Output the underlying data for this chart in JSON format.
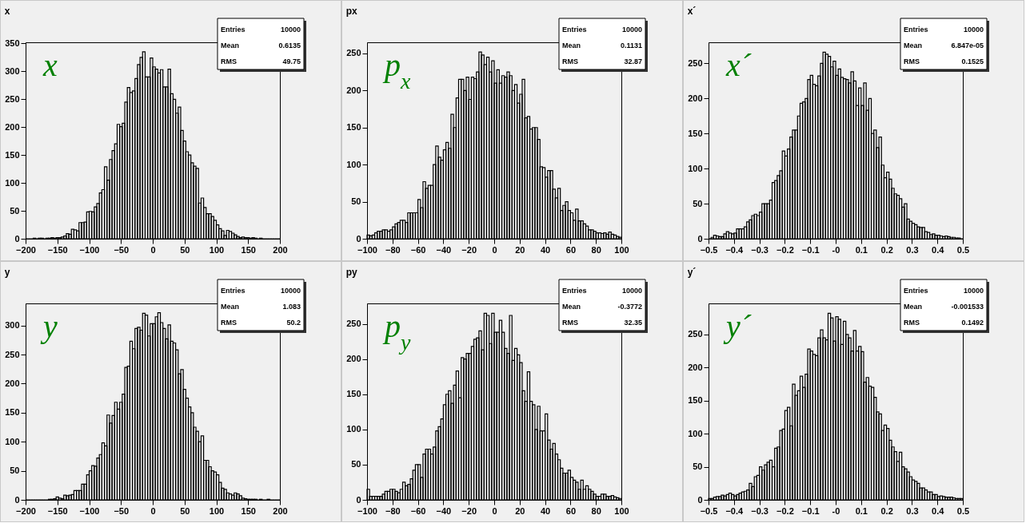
{
  "chart_data": [
    {
      "type": "histogram",
      "title": "x",
      "color": "#000000",
      "annotations": [
        "x",
        "Entries",
        "10000",
        "Mean",
        "0.6135",
        "RMS",
        "49.75"
      ],
      "xlim": [
        -200,
        200
      ],
      "xticks": [
        -200,
        -150,
        -100,
        -50,
        0,
        50,
        100,
        150,
        200
      ],
      "ylim": [
        0,
        352
      ],
      "yticks": [
        0,
        50,
        100,
        150,
        200,
        250,
        300,
        350
      ],
      "bins": [
        -200,
        -196,
        -192,
        -188,
        -184,
        -180,
        -176,
        -172,
        -168,
        -164,
        -160,
        -156,
        -152,
        -148,
        -144,
        -140,
        -136,
        -132,
        -128,
        -124,
        -120,
        -116,
        -112,
        -108,
        -104,
        -100,
        -96,
        -92,
        -88,
        -84,
        -80,
        -76,
        -72,
        -68,
        -64,
        -60,
        -56,
        -52,
        -48,
        -44,
        -40,
        -36,
        -32,
        -28,
        -24,
        -20,
        -16,
        -12,
        -8,
        -4,
        0,
        4,
        8,
        12,
        16,
        20,
        24,
        28,
        32,
        36,
        40,
        44,
        48,
        52,
        56,
        60,
        64,
        68,
        72,
        76,
        80,
        84,
        88,
        92,
        96,
        100,
        104,
        108,
        112,
        116,
        120,
        124,
        128,
        132,
        136,
        140,
        144,
        148,
        152,
        156,
        160,
        164,
        168,
        172,
        176,
        180,
        184,
        188,
        192,
        196,
        200
      ],
      "values": [
        0,
        0,
        0,
        1,
        0,
        1,
        1,
        0,
        1,
        1,
        2,
        1,
        2,
        2,
        3,
        5,
        9,
        8,
        17,
        16,
        14,
        29,
        29,
        30,
        48,
        49,
        48,
        57,
        63,
        82,
        88,
        129,
        105,
        142,
        158,
        170,
        205,
        201,
        207,
        245,
        271,
        262,
        265,
        287,
        312,
        325,
        335,
        290,
        290,
        324,
        308,
        304,
        297,
        303,
        272,
        272,
        304,
        260,
        250,
        225,
        236,
        194,
        175,
        156,
        150,
        136,
        130,
        126,
        64,
        73,
        56,
        45,
        45,
        40,
        33,
        25,
        18,
        14,
        6,
        15,
        13,
        10,
        7,
        4,
        2,
        3,
        2,
        2,
        1,
        2,
        1,
        0,
        1,
        0,
        0,
        0,
        0,
        0,
        0,
        0
      ]
    },
    {
      "type": "histogram",
      "title": "px",
      "color": "#000000",
      "annotations": [
        "p$_{x}$",
        "Entries",
        "10000",
        "Mean",
        "0.1131",
        "RMS",
        "32.87"
      ],
      "xlim": [
        -100,
        100
      ],
      "xticks": [
        -100,
        -80,
        -60,
        -40,
        -20,
        0,
        20,
        40,
        60,
        80,
        100
      ],
      "ylim": [
        0,
        265
      ],
      "yticks": [
        0,
        50,
        100,
        150,
        200,
        250
      ],
      "bins": [
        -100,
        -98,
        -96,
        -94,
        -92,
        -90,
        -88,
        -86,
        -84,
        -82,
        -80,
        -78,
        -76,
        -74,
        -72,
        -70,
        -68,
        -66,
        -64,
        -62,
        -60,
        -58,
        -56,
        -54,
        -52,
        -50,
        -48,
        -46,
        -44,
        -42,
        -40,
        -38,
        -36,
        -34,
        -32,
        -30,
        -28,
        -26,
        -24,
        -22,
        -20,
        -18,
        -16,
        -14,
        -12,
        -10,
        -8,
        -6,
        -4,
        -2,
        0,
        2,
        4,
        6,
        8,
        10,
        12,
        14,
        16,
        18,
        20,
        22,
        24,
        26,
        28,
        30,
        32,
        34,
        36,
        38,
        40,
        42,
        44,
        46,
        48,
        50,
        52,
        54,
        56,
        58,
        60,
        62,
        64,
        66,
        68,
        70,
        72,
        74,
        76,
        78,
        80,
        82,
        84,
        86,
        88,
        90,
        92,
        94,
        96,
        98,
        100
      ],
      "values": [
        5,
        4,
        5,
        8,
        10,
        10,
        12,
        12,
        10,
        12,
        16,
        20,
        22,
        25,
        25,
        22,
        35,
        35,
        35,
        35,
        53,
        42,
        77,
        68,
        72,
        72,
        100,
        125,
        110,
        106,
        120,
        130,
        122,
        168,
        150,
        190,
        215,
        215,
        200,
        218,
        188,
        218,
        216,
        225,
        252,
        248,
        235,
        245,
        225,
        240,
        210,
        228,
        210,
        220,
        218,
        225,
        220,
        200,
        208,
        183,
        195,
        215,
        163,
        165,
        148,
        150,
        150,
        134,
        97,
        96,
        83,
        92,
        92,
        67,
        55,
        68,
        38,
        45,
        50,
        38,
        35,
        25,
        40,
        24,
        24,
        20,
        17,
        12,
        12,
        10,
        8,
        8,
        7,
        8,
        6,
        9,
        6,
        5,
        3,
        2
      ]
    },
    {
      "type": "histogram",
      "title": "x´",
      "color": "#000000",
      "annotations": [
        "x´",
        "Entries",
        "10000",
        "Mean",
        "6.847e-05",
        "RMS",
        "0.1525"
      ],
      "xlim": [
        -0.5,
        0.5
      ],
      "xticks": [
        -0.5,
        -0.4,
        -0.3,
        -0.2,
        -0.1,
        {
          "value": 0,
          "label": "-0"
        },
        0.1,
        0.2,
        0.3,
        0.4,
        0.5
      ],
      "ylim": [
        0,
        280
      ],
      "yticks": [
        0,
        50,
        100,
        150,
        200,
        250
      ],
      "bins": [
        -0.5,
        -0.49,
        -0.48,
        -0.47,
        -0.46,
        -0.45,
        -0.44,
        -0.43,
        -0.42,
        -0.41,
        -0.4,
        -0.39,
        -0.38,
        -0.37,
        -0.36,
        -0.35,
        -0.34,
        -0.33,
        -0.32,
        -0.31,
        -0.3,
        -0.29,
        -0.28,
        -0.27,
        -0.26,
        -0.25,
        -0.24,
        -0.23,
        -0.22,
        -0.21,
        -0.2,
        -0.19,
        -0.18,
        -0.17,
        -0.16,
        -0.15,
        -0.14,
        -0.13,
        -0.12,
        -0.11,
        -0.1,
        -0.09,
        -0.08,
        -0.07,
        -0.06,
        -0.05,
        -0.04,
        -0.03,
        -0.02,
        -0.01,
        0,
        0.01,
        0.02,
        0.03,
        0.04,
        0.05,
        0.06,
        0.07,
        0.08,
        0.09,
        0.1,
        0.11,
        0.12,
        0.13,
        0.14,
        0.15,
        0.16,
        0.17,
        0.18,
        0.19,
        0.2,
        0.21,
        0.22,
        0.23,
        0.24,
        0.25,
        0.26,
        0.27,
        0.28,
        0.29,
        0.3,
        0.31,
        0.32,
        0.33,
        0.34,
        0.35,
        0.36,
        0.37,
        0.38,
        0.39,
        0.4,
        0.41,
        0.42,
        0.43,
        0.44,
        0.45,
        0.46,
        0.47,
        0.48,
        0.49,
        0.5
      ],
      "values": [
        0,
        2,
        5,
        4,
        3,
        3,
        7,
        10,
        8,
        7,
        8,
        14,
        14,
        14,
        17,
        24,
        27,
        33,
        35,
        33,
        38,
        50,
        50,
        50,
        55,
        80,
        83,
        90,
        97,
        125,
        118,
        128,
        145,
        155,
        155,
        175,
        193,
        195,
        200,
        227,
        233,
        220,
        218,
        232,
        250,
        266,
        263,
        260,
        245,
        253,
        233,
        242,
        230,
        228,
        227,
        222,
        238,
        225,
        190,
        215,
        190,
        222,
        183,
        200,
        150,
        155,
        130,
        145,
        105,
        87,
        95,
        85,
        72,
        64,
        62,
        57,
        45,
        50,
        28,
        25,
        22,
        20,
        17,
        16,
        16,
        10,
        9,
        6,
        7,
        5,
        5,
        4,
        3,
        4,
        3,
        2,
        2,
        1,
        1,
        0
      ]
    },
    {
      "type": "histogram",
      "title": "y",
      "color": "#000000",
      "annotations": [
        "y",
        "Entries",
        "10000",
        "Mean",
        "1.083",
        "RMS",
        "50.2"
      ],
      "xlim": [
        -200,
        200
      ],
      "xticks": [
        -200,
        -150,
        -100,
        -50,
        0,
        50,
        100,
        150,
        200
      ],
      "ylim": [
        0,
        338
      ],
      "yticks": [
        0,
        50,
        100,
        150,
        200,
        250,
        300
      ],
      "bins": [
        -200,
        -196,
        -192,
        -188,
        -184,
        -180,
        -176,
        -172,
        -168,
        -164,
        -160,
        -156,
        -152,
        -148,
        -144,
        -140,
        -136,
        -132,
        -128,
        -124,
        -120,
        -116,
        -112,
        -108,
        -104,
        -100,
        -96,
        -92,
        -88,
        -84,
        -80,
        -76,
        -72,
        -68,
        -64,
        -60,
        -56,
        -52,
        -48,
        -44,
        -40,
        -36,
        -32,
        -28,
        -24,
        -20,
        -16,
        -12,
        -8,
        -4,
        0,
        4,
        8,
        12,
        16,
        20,
        24,
        28,
        32,
        36,
        40,
        44,
        48,
        52,
        56,
        60,
        64,
        68,
        72,
        76,
        80,
        84,
        88,
        92,
        96,
        100,
        104,
        108,
        112,
        116,
        120,
        124,
        128,
        132,
        136,
        140,
        144,
        148,
        152,
        156,
        160,
        164,
        168,
        172,
        176,
        180,
        184,
        188,
        192,
        196,
        200
      ],
      "values": [
        0,
        0,
        0,
        0,
        0,
        0,
        0,
        0,
        0,
        1,
        1,
        2,
        5,
        3,
        2,
        8,
        7,
        8,
        9,
        16,
        16,
        16,
        27,
        27,
        43,
        50,
        59,
        58,
        72,
        78,
        98,
        93,
        146,
        132,
        145,
        168,
        156,
        168,
        182,
        228,
        230,
        273,
        260,
        295,
        297,
        292,
        321,
        318,
        282,
        303,
        303,
        315,
        322,
        305,
        295,
        277,
        301,
        273,
        270,
        258,
        217,
        224,
        190,
        175,
        160,
        150,
        125,
        118,
        100,
        110,
        68,
        68,
        57,
        50,
        48,
        43,
        30,
        20,
        18,
        12,
        10,
        8,
        12,
        10,
        7,
        3,
        2,
        1,
        1,
        1,
        1,
        0,
        1,
        0,
        0,
        1,
        0,
        0,
        0,
        0
      ]
    },
    {
      "type": "histogram",
      "title": "py",
      "color": "#000000",
      "annotations": [
        "p$_{y}$",
        "Entries",
        "10000",
        "Mean",
        "-0.3772",
        "RMS",
        "32.35"
      ],
      "xlim": [
        -100,
        100
      ],
      "xticks": [
        -100,
        -80,
        -60,
        -40,
        -20,
        0,
        20,
        40,
        60,
        80,
        100
      ],
      "ylim": [
        0,
        279
      ],
      "yticks": [
        0,
        50,
        100,
        150,
        200,
        250
      ],
      "bins": [
        -100,
        -98,
        -96,
        -94,
        -92,
        -90,
        -88,
        -86,
        -84,
        -82,
        -80,
        -78,
        -76,
        -74,
        -72,
        -70,
        -68,
        -66,
        -64,
        -62,
        -60,
        -58,
        -56,
        -54,
        -52,
        -50,
        -48,
        -46,
        -44,
        -42,
        -40,
        -38,
        -36,
        -34,
        -32,
        -30,
        -28,
        -26,
        -24,
        -22,
        -20,
        -18,
        -16,
        -14,
        -12,
        -10,
        -8,
        -6,
        -4,
        -2,
        0,
        2,
        4,
        6,
        8,
        10,
        12,
        14,
        16,
        18,
        20,
        22,
        24,
        26,
        28,
        30,
        32,
        34,
        36,
        38,
        40,
        42,
        44,
        46,
        48,
        50,
        52,
        54,
        56,
        58,
        60,
        62,
        64,
        66,
        68,
        70,
        72,
        74,
        76,
        78,
        80,
        82,
        84,
        86,
        88,
        90,
        92,
        94,
        96,
        98,
        100
      ],
      "values": [
        15,
        5,
        5,
        5,
        5,
        5,
        8,
        12,
        12,
        15,
        15,
        12,
        10,
        15,
        25,
        20,
        22,
        30,
        42,
        50,
        50,
        32,
        65,
        72,
        72,
        65,
        75,
        98,
        104,
        115,
        135,
        150,
        155,
        137,
        163,
        183,
        145,
        202,
        200,
        208,
        208,
        218,
        228,
        230,
        240,
        213,
        265,
        262,
        222,
        265,
        238,
        238,
        255,
        238,
        215,
        208,
        262,
        198,
        215,
        206,
        195,
        155,
        140,
        182,
        140,
        135,
        100,
        133,
        98,
        98,
        122,
        85,
        72,
        80,
        65,
        57,
        45,
        38,
        38,
        42,
        32,
        28,
        25,
        15,
        28,
        15,
        20,
        15,
        12,
        8,
        5,
        5,
        8,
        8,
        5,
        5,
        6,
        4,
        3,
        2
      ]
    },
    {
      "type": "histogram",
      "title": "y´",
      "color": "#000000",
      "annotations": [
        "y´",
        "Entries",
        "10000",
        "Mean",
        "-0.001533",
        "RMS",
        "0.1492"
      ],
      "xlim": [
        -0.5,
        0.5
      ],
      "xticks": [
        -0.5,
        -0.4,
        -0.3,
        -0.2,
        -0.1,
        {
          "value": 0,
          "label": "-0"
        },
        0.1,
        0.2,
        0.3,
        0.4,
        0.5
      ],
      "ylim": [
        0,
        297
      ],
      "yticks": [
        0,
        50,
        100,
        150,
        200,
        250
      ],
      "bins": [
        -0.5,
        -0.49,
        -0.48,
        -0.47,
        -0.46,
        -0.45,
        -0.44,
        -0.43,
        -0.42,
        -0.41,
        -0.4,
        -0.39,
        -0.38,
        -0.37,
        -0.36,
        -0.35,
        -0.34,
        -0.33,
        -0.32,
        -0.31,
        -0.3,
        -0.29,
        -0.28,
        -0.27,
        -0.26,
        -0.25,
        -0.24,
        -0.23,
        -0.22,
        -0.21,
        -0.2,
        -0.19,
        -0.18,
        -0.17,
        -0.16,
        -0.15,
        -0.14,
        -0.13,
        -0.12,
        -0.11,
        -0.1,
        -0.09,
        -0.08,
        -0.07,
        -0.06,
        -0.05,
        -0.04,
        -0.03,
        -0.02,
        -0.01,
        0,
        0.01,
        0.02,
        0.03,
        0.04,
        0.05,
        0.06,
        0.07,
        0.08,
        0.09,
        0.1,
        0.11,
        0.12,
        0.13,
        0.14,
        0.15,
        0.16,
        0.17,
        0.18,
        0.19,
        0.2,
        0.21,
        0.22,
        0.23,
        0.24,
        0.25,
        0.26,
        0.27,
        0.28,
        0.29,
        0.3,
        0.31,
        0.32,
        0.33,
        0.34,
        0.35,
        0.36,
        0.37,
        0.38,
        0.39,
        0.4,
        0.41,
        0.42,
        0.43,
        0.44,
        0.45,
        0.46,
        0.47,
        0.48,
        0.49,
        0.5
      ],
      "values": [
        2,
        2,
        4,
        5,
        5,
        7,
        6,
        8,
        10,
        8,
        6,
        8,
        10,
        12,
        13,
        15,
        25,
        20,
        35,
        37,
        50,
        45,
        53,
        57,
        60,
        50,
        78,
        80,
        105,
        107,
        135,
        140,
        112,
        175,
        158,
        165,
        187,
        170,
        190,
        228,
        225,
        220,
        218,
        245,
        257,
        245,
        242,
        282,
        275,
        240,
        277,
        273,
        235,
        270,
        250,
        245,
        225,
        256,
        225,
        232,
        224,
        178,
        185,
        172,
        170,
        155,
        133,
        130,
        105,
        113,
        108,
        90,
        80,
        73,
        58,
        72,
        50,
        47,
        42,
        35,
        30,
        28,
        25,
        18,
        18,
        15,
        12,
        12,
        8,
        8,
        5,
        6,
        5,
        4,
        4,
        4,
        3,
        2,
        2,
        2
      ]
    }
  ]
}
